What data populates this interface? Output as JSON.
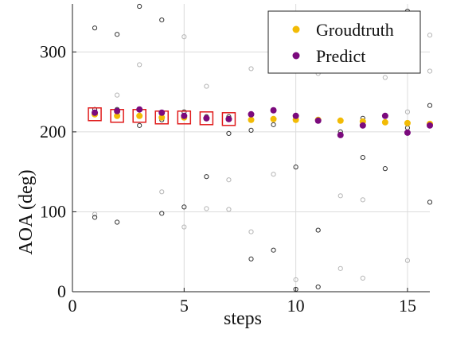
{
  "chart_data": {
    "type": "scatter",
    "title": "",
    "xlabel": "steps",
    "ylabel": "AOA (deg)",
    "xlim": [
      0,
      16
    ],
    "ylim": [
      0,
      360
    ],
    "xticks": [
      0,
      5,
      10,
      15
    ],
    "yticks": [
      0,
      100,
      200,
      300
    ],
    "grid": true,
    "legend_position": "top-right",
    "colors": {
      "groundtruth": "#f2bb05",
      "predict": "#7b0a7d",
      "candidate_dark": "#333333",
      "candidate_light": "#b5b5b5",
      "highlight_box": "#e01b1b"
    },
    "series": [
      {
        "name": "Groudtruth",
        "x": [
          1,
          2,
          3,
          4,
          5,
          6,
          7,
          8,
          9,
          10,
          11,
          12,
          13,
          14,
          15,
          16
        ],
        "values": [
          222,
          220,
          220,
          218,
          218,
          217,
          216,
          215,
          216,
          215,
          215,
          214,
          213,
          212,
          211,
          210
        ]
      },
      {
        "name": "Predict",
        "x": [
          1,
          2,
          3,
          4,
          5,
          6,
          7,
          8,
          9,
          10,
          11,
          12,
          13,
          14,
          15,
          16
        ],
        "values": [
          224,
          226,
          228,
          224,
          220,
          217,
          216,
          222,
          227,
          220,
          214,
          196,
          208,
          220,
          199,
          208
        ]
      }
    ],
    "candidates_dark": [
      [
        1,
        330
      ],
      [
        1,
        228
      ],
      [
        1,
        93
      ],
      [
        2,
        322
      ],
      [
        2,
        228
      ],
      [
        2,
        87
      ],
      [
        3,
        357
      ],
      [
        3,
        208
      ],
      [
        4,
        340
      ],
      [
        4,
        215
      ],
      [
        4,
        98
      ],
      [
        5,
        225
      ],
      [
        5,
        106
      ],
      [
        6,
        219
      ],
      [
        6,
        144
      ],
      [
        7,
        219
      ],
      [
        7,
        198
      ],
      [
        8,
        202
      ],
      [
        8,
        41
      ],
      [
        9,
        209
      ],
      [
        9,
        52
      ],
      [
        10,
        156
      ],
      [
        10,
        3
      ],
      [
        11,
        77
      ],
      [
        11,
        6
      ],
      [
        12,
        200
      ],
      [
        13,
        217
      ],
      [
        13,
        168
      ],
      [
        14,
        154
      ],
      [
        15,
        351
      ],
      [
        15,
        205
      ],
      [
        16,
        233
      ],
      [
        16,
        112
      ]
    ],
    "candidates_light": [
      [
        1,
        97
      ],
      [
        2,
        246
      ],
      [
        3,
        284
      ],
      [
        4,
        125
      ],
      [
        5,
        319
      ],
      [
        5,
        81
      ],
      [
        6,
        257
      ],
      [
        6,
        104
      ],
      [
        7,
        140
      ],
      [
        7,
        103
      ],
      [
        8,
        279
      ],
      [
        8,
        75
      ],
      [
        9,
        343
      ],
      [
        9,
        147
      ],
      [
        10,
        15
      ],
      [
        11,
        273
      ],
      [
        12,
        120
      ],
      [
        12,
        29
      ],
      [
        13,
        115
      ],
      [
        13,
        17
      ],
      [
        14,
        268
      ],
      [
        15,
        225
      ],
      [
        15,
        39
      ],
      [
        16,
        321
      ],
      [
        16,
        276
      ]
    ],
    "highlight_steps": [
      1,
      2,
      3,
      4,
      5,
      6,
      7
    ]
  }
}
